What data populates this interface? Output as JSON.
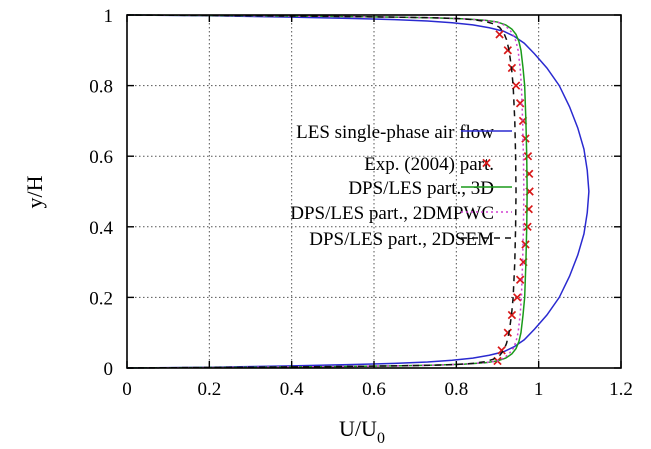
{
  "chart_data": {
    "type": "line",
    "xlabel": "U/U",
    "xlabel_sub": "0",
    "ylabel": "y/H",
    "xlim": [
      0,
      1.2
    ],
    "ylim": [
      0,
      1
    ],
    "xticks": [
      "0",
      "0.2",
      "0.4",
      "0.6",
      "0.8",
      "1",
      "1.2"
    ],
    "yticks": [
      "0",
      "0.2",
      "0.4",
      "0.6",
      "0.8",
      "1"
    ],
    "grid": true,
    "legend_position": "center-right",
    "series": [
      {
        "name": "LES single-phase air flow",
        "style": "solid-line",
        "color": "#2a2ad0",
        "points": [
          [
            0.0,
            0.0
          ],
          [
            0.2,
            0.002
          ],
          [
            0.4,
            0.006
          ],
          [
            0.55,
            0.01
          ],
          [
            0.65,
            0.013
          ],
          [
            0.73,
            0.017
          ],
          [
            0.79,
            0.022
          ],
          [
            0.84,
            0.028
          ],
          [
            0.88,
            0.036
          ],
          [
            0.915,
            0.046
          ],
          [
            0.94,
            0.06
          ],
          [
            0.965,
            0.08
          ],
          [
            0.99,
            0.11
          ],
          [
            1.02,
            0.15
          ],
          [
            1.05,
            0.2
          ],
          [
            1.075,
            0.26
          ],
          [
            1.095,
            0.32
          ],
          [
            1.11,
            0.38
          ],
          [
            1.118,
            0.44
          ],
          [
            1.122,
            0.5
          ],
          [
            1.118,
            0.56
          ],
          [
            1.11,
            0.62
          ],
          [
            1.095,
            0.68
          ],
          [
            1.075,
            0.74
          ],
          [
            1.05,
            0.8
          ],
          [
            1.02,
            0.85
          ],
          [
            0.99,
            0.89
          ],
          [
            0.965,
            0.92
          ],
          [
            0.94,
            0.94
          ],
          [
            0.915,
            0.954
          ],
          [
            0.88,
            0.964
          ],
          [
            0.84,
            0.972
          ],
          [
            0.79,
            0.978
          ],
          [
            0.73,
            0.983
          ],
          [
            0.65,
            0.987
          ],
          [
            0.55,
            0.99
          ],
          [
            0.4,
            0.994
          ],
          [
            0.2,
            0.998
          ],
          [
            0.0,
            1.0
          ]
        ]
      },
      {
        "name": "Exp. (2004) part.",
        "style": "x-markers",
        "color": "#d81818",
        "points": [
          [
            0.9,
            0.02
          ],
          [
            0.91,
            0.05
          ],
          [
            0.925,
            0.1
          ],
          [
            0.935,
            0.15
          ],
          [
            0.948,
            0.2
          ],
          [
            0.955,
            0.25
          ],
          [
            0.963,
            0.3
          ],
          [
            0.968,
            0.35
          ],
          [
            0.973,
            0.4
          ],
          [
            0.976,
            0.45
          ],
          [
            0.978,
            0.5
          ],
          [
            0.977,
            0.55
          ],
          [
            0.974,
            0.6
          ],
          [
            0.968,
            0.65
          ],
          [
            0.962,
            0.7
          ],
          [
            0.955,
            0.75
          ],
          [
            0.945,
            0.8
          ],
          [
            0.935,
            0.85
          ],
          [
            0.925,
            0.9
          ],
          [
            0.905,
            0.945
          ]
        ]
      },
      {
        "name": "DPS/LES part., 3D",
        "style": "solid-line",
        "color": "#1a9a1a",
        "points": [
          [
            0.0,
            0.0
          ],
          [
            0.3,
            0.002
          ],
          [
            0.5,
            0.004
          ],
          [
            0.65,
            0.006
          ],
          [
            0.75,
            0.008
          ],
          [
            0.82,
            0.011
          ],
          [
            0.87,
            0.015
          ],
          [
            0.9,
            0.02
          ],
          [
            0.92,
            0.028
          ],
          [
            0.935,
            0.04
          ],
          [
            0.945,
            0.055
          ],
          [
            0.952,
            0.075
          ],
          [
            0.957,
            0.1
          ],
          [
            0.962,
            0.15
          ],
          [
            0.966,
            0.2
          ],
          [
            0.969,
            0.3
          ],
          [
            0.971,
            0.4
          ],
          [
            0.972,
            0.5
          ],
          [
            0.971,
            0.6
          ],
          [
            0.969,
            0.7
          ],
          [
            0.966,
            0.8
          ],
          [
            0.962,
            0.85
          ],
          [
            0.957,
            0.9
          ],
          [
            0.952,
            0.925
          ],
          [
            0.945,
            0.945
          ],
          [
            0.935,
            0.96
          ],
          [
            0.92,
            0.972
          ],
          [
            0.9,
            0.98
          ],
          [
            0.87,
            0.985
          ],
          [
            0.82,
            0.989
          ],
          [
            0.75,
            0.992
          ],
          [
            0.65,
            0.994
          ],
          [
            0.5,
            0.996
          ],
          [
            0.3,
            0.998
          ],
          [
            0.0,
            1.0
          ]
        ]
      },
      {
        "name": "DPS/LES part., 2DMPWC",
        "style": "dotted-line",
        "color": "#d040d0",
        "points": [
          [
            0.0,
            0.0
          ],
          [
            0.3,
            0.002
          ],
          [
            0.5,
            0.004
          ],
          [
            0.65,
            0.006
          ],
          [
            0.75,
            0.008
          ],
          [
            0.82,
            0.011
          ],
          [
            0.87,
            0.015
          ],
          [
            0.9,
            0.02
          ],
          [
            0.915,
            0.028
          ],
          [
            0.928,
            0.04
          ],
          [
            0.938,
            0.055
          ],
          [
            0.945,
            0.075
          ],
          [
            0.95,
            0.1
          ],
          [
            0.955,
            0.15
          ],
          [
            0.958,
            0.2
          ],
          [
            0.961,
            0.3
          ],
          [
            0.963,
            0.4
          ],
          [
            0.964,
            0.5
          ],
          [
            0.963,
            0.6
          ],
          [
            0.961,
            0.7
          ],
          [
            0.958,
            0.8
          ],
          [
            0.955,
            0.85
          ],
          [
            0.95,
            0.9
          ],
          [
            0.945,
            0.925
          ],
          [
            0.938,
            0.945
          ],
          [
            0.928,
            0.96
          ],
          [
            0.915,
            0.972
          ],
          [
            0.9,
            0.98
          ],
          [
            0.87,
            0.985
          ],
          [
            0.82,
            0.989
          ],
          [
            0.75,
            0.992
          ],
          [
            0.65,
            0.994
          ],
          [
            0.5,
            0.996
          ],
          [
            0.3,
            0.998
          ],
          [
            0.0,
            1.0
          ]
        ]
      },
      {
        "name": "DPS/LES part., 2DSEM",
        "style": "dashed-line",
        "color": "#111111",
        "points": [
          [
            0.0,
            0.0
          ],
          [
            0.3,
            0.002
          ],
          [
            0.5,
            0.004
          ],
          [
            0.65,
            0.006
          ],
          [
            0.75,
            0.008
          ],
          [
            0.8,
            0.01
          ],
          [
            0.84,
            0.013
          ],
          [
            0.87,
            0.018
          ],
          [
            0.89,
            0.025
          ],
          [
            0.905,
            0.035
          ],
          [
            0.915,
            0.05
          ],
          [
            0.922,
            0.07
          ],
          [
            0.928,
            0.1
          ],
          [
            0.934,
            0.15
          ],
          [
            0.938,
            0.2
          ],
          [
            0.942,
            0.3
          ],
          [
            0.944,
            0.4
          ],
          [
            0.945,
            0.5
          ],
          [
            0.944,
            0.6
          ],
          [
            0.942,
            0.7
          ],
          [
            0.938,
            0.8
          ],
          [
            0.934,
            0.85
          ],
          [
            0.928,
            0.9
          ],
          [
            0.922,
            0.93
          ],
          [
            0.915,
            0.95
          ],
          [
            0.905,
            0.965
          ],
          [
            0.89,
            0.975
          ],
          [
            0.87,
            0.982
          ],
          [
            0.84,
            0.987
          ],
          [
            0.8,
            0.99
          ],
          [
            0.75,
            0.992
          ],
          [
            0.65,
            0.994
          ],
          [
            0.5,
            0.996
          ],
          [
            0.3,
            0.998
          ],
          [
            0.0,
            1.0
          ]
        ]
      }
    ]
  }
}
